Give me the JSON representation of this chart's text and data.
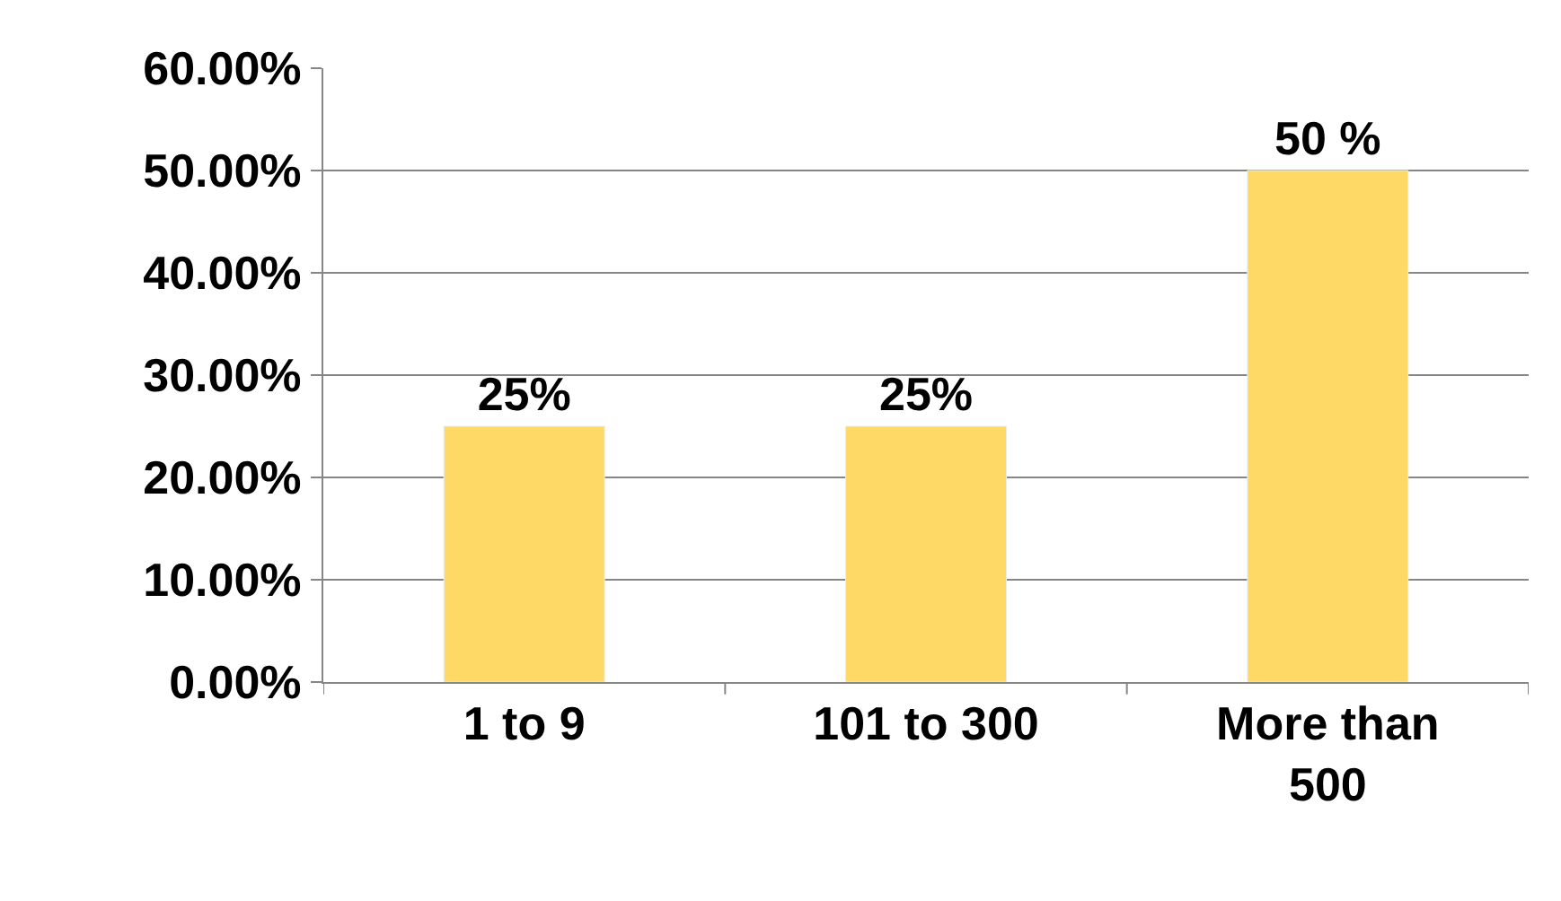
{
  "chart_data": {
    "type": "bar",
    "categories": [
      "1 to 9",
      "101 to 300",
      "More than 500"
    ],
    "values": [
      25,
      25,
      50
    ],
    "color": "#ffd966",
    "value_labels": [
      "25%",
      "25%",
      "50 %"
    ],
    "ylim": [
      0,
      60
    ],
    "yticks": [
      {
        "value": 0,
        "label": "0.00%"
      },
      {
        "value": 10,
        "label": "10.00%"
      },
      {
        "value": 20,
        "label": "20.00%"
      },
      {
        "value": 30,
        "label": "30.00%"
      },
      {
        "value": 40,
        "label": "40.00%"
      },
      {
        "value": 50,
        "label": "50.00%"
      },
      {
        "value": 60,
        "label": "60.00%"
      }
    ],
    "grid": "y",
    "legend": false
  }
}
